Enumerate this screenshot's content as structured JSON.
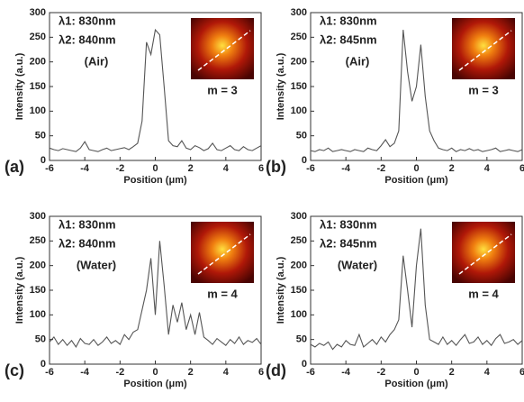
{
  "chart_data": [
    {
      "type": "line",
      "lambda1": "λ1: 830nm",
      "lambda2": "λ2: 840nm",
      "medium": "(Air)",
      "mode": "m = 3",
      "panel_label": "(a)",
      "x_label": "Position (μm)",
      "y_label": "Intensity (a.u.)",
      "xlim": [
        -6,
        6
      ],
      "xticks": [
        -6,
        -4,
        -2,
        0,
        2,
        4,
        6
      ],
      "ylim": [
        0,
        300
      ],
      "yticks": [
        0,
        50,
        100,
        150,
        200,
        250,
        300
      ],
      "x": [
        -6,
        -5.75,
        -5.5,
        -5.25,
        -5,
        -4.75,
        -4.5,
        -4.25,
        -4,
        -3.75,
        -3.5,
        -3.25,
        -3,
        -2.75,
        -2.5,
        -2.25,
        -2,
        -1.75,
        -1.5,
        -1.25,
        -1,
        -0.75,
        -0.5,
        -0.25,
        0,
        0.25,
        0.5,
        0.75,
        1,
        1.25,
        1.5,
        1.75,
        2,
        2.25,
        2.5,
        2.75,
        3,
        3.25,
        3.5,
        3.75,
        4,
        4.25,
        4.5,
        4.75,
        5,
        5.25,
        5.5,
        5.75,
        6
      ],
      "series": [
        {
          "color": "#555555",
          "values": [
            25,
            22,
            20,
            24,
            22,
            20,
            18,
            25,
            38,
            22,
            20,
            18,
            22,
            25,
            20,
            22,
            24,
            26,
            22,
            28,
            35,
            80,
            240,
            215,
            265,
            255,
            150,
            40,
            30,
            28,
            40,
            25,
            22,
            30,
            26,
            20,
            24,
            35,
            22,
            20,
            25,
            30,
            22,
            20,
            28,
            22,
            20,
            25,
            30
          ]
        }
      ]
    },
    {
      "type": "line",
      "lambda1": "λ1: 830nm",
      "lambda2": "λ2: 845nm",
      "medium": "(Air)",
      "mode": "m = 3",
      "panel_label": "(b)",
      "x_label": "Position (μm)",
      "y_label": "Intensity (a.u.)",
      "xlim": [
        -6,
        6
      ],
      "xticks": [
        -6,
        -4,
        -2,
        0,
        2,
        4,
        6
      ],
      "ylim": [
        0,
        300
      ],
      "yticks": [
        0,
        50,
        100,
        150,
        200,
        250,
        300
      ],
      "x": [
        -6,
        -5.75,
        -5.5,
        -5.25,
        -5,
        -4.75,
        -4.5,
        -4.25,
        -4,
        -3.75,
        -3.5,
        -3.25,
        -3,
        -2.75,
        -2.5,
        -2.25,
        -2,
        -1.75,
        -1.5,
        -1.25,
        -1,
        -0.75,
        -0.5,
        -0.25,
        0,
        0.25,
        0.5,
        0.75,
        1,
        1.25,
        1.5,
        1.75,
        2,
        2.25,
        2.5,
        2.75,
        3,
        3.25,
        3.5,
        3.75,
        4,
        4.25,
        4.5,
        4.75,
        5,
        5.25,
        5.5,
        5.75,
        6
      ],
      "series": [
        {
          "color": "#555555",
          "values": [
            20,
            18,
            22,
            20,
            25,
            18,
            20,
            22,
            20,
            18,
            22,
            20,
            18,
            25,
            22,
            20,
            30,
            42,
            28,
            35,
            60,
            265,
            180,
            120,
            150,
            235,
            130,
            60,
            40,
            25,
            22,
            20,
            25,
            18,
            22,
            20,
            24,
            20,
            22,
            18,
            20,
            22,
            25,
            18,
            20,
            22,
            20,
            18,
            22
          ]
        }
      ]
    },
    {
      "type": "line",
      "lambda1": "λ1: 830nm",
      "lambda2": "λ2: 840nm",
      "medium": "(Water)",
      "mode": "m = 4",
      "panel_label": "(c)",
      "x_label": "Position (μm)",
      "y_label": "Intensity (a.u.)",
      "xlim": [
        -6,
        6
      ],
      "xticks": [
        -6,
        -4,
        -2,
        0,
        2,
        4,
        6
      ],
      "ylim": [
        0,
        300
      ],
      "yticks": [
        0,
        50,
        100,
        150,
        200,
        250,
        300
      ],
      "x": [
        -6,
        -5.75,
        -5.5,
        -5.25,
        -5,
        -4.75,
        -4.5,
        -4.25,
        -4,
        -3.75,
        -3.5,
        -3.25,
        -3,
        -2.75,
        -2.5,
        -2.25,
        -2,
        -1.75,
        -1.5,
        -1.25,
        -1,
        -0.75,
        -0.5,
        -0.25,
        0,
        0.25,
        0.5,
        0.75,
        1,
        1.25,
        1.5,
        1.75,
        2,
        2.25,
        2.5,
        2.75,
        3,
        3.25,
        3.5,
        3.75,
        4,
        4.25,
        4.5,
        4.75,
        5,
        5.25,
        5.5,
        5.75,
        6
      ],
      "series": [
        {
          "color": "#555555",
          "values": [
            45,
            55,
            40,
            50,
            38,
            48,
            35,
            52,
            42,
            40,
            50,
            38,
            45,
            55,
            42,
            48,
            40,
            60,
            50,
            65,
            70,
            110,
            150,
            215,
            100,
            250,
            160,
            60,
            120,
            85,
            125,
            70,
            100,
            60,
            105,
            55,
            48,
            40,
            52,
            45,
            38,
            50,
            42,
            55,
            40,
            48,
            44,
            52,
            40
          ]
        }
      ]
    },
    {
      "type": "line",
      "lambda1": "λ1: 830nm",
      "lambda2": "λ2: 845nm",
      "medium": "(Water)",
      "mode": "m = 4",
      "panel_label": "(d)",
      "x_label": "Position (μm)",
      "y_label": "Intensity (a.u.)",
      "xlim": [
        -6,
        6
      ],
      "xticks": [
        -6,
        -4,
        -2,
        0,
        2,
        4,
        6
      ],
      "ylim": [
        0,
        300
      ],
      "yticks": [
        0,
        50,
        100,
        150,
        200,
        250,
        300
      ],
      "x": [
        -6,
        -5.75,
        -5.5,
        -5.25,
        -5,
        -4.75,
        -4.5,
        -4.25,
        -4,
        -3.75,
        -3.5,
        -3.25,
        -3,
        -2.75,
        -2.5,
        -2.25,
        -2,
        -1.75,
        -1.5,
        -1.25,
        -1,
        -0.75,
        -0.5,
        -0.25,
        0,
        0.25,
        0.5,
        0.75,
        1,
        1.25,
        1.5,
        1.75,
        2,
        2.25,
        2.5,
        2.75,
        3,
        3.25,
        3.5,
        3.75,
        4,
        4.25,
        4.5,
        4.75,
        5,
        5.25,
        5.5,
        5.75,
        6
      ],
      "series": [
        {
          "color": "#555555",
          "values": [
            40,
            35,
            42,
            38,
            45,
            30,
            40,
            35,
            48,
            40,
            38,
            60,
            35,
            42,
            50,
            40,
            55,
            45,
            60,
            70,
            90,
            220,
            150,
            75,
            200,
            275,
            120,
            50,
            45,
            40,
            55,
            40,
            48,
            38,
            50,
            60,
            42,
            45,
            55,
            40,
            48,
            38,
            52,
            60,
            42,
            45,
            50,
            40,
            48
          ]
        }
      ]
    }
  ]
}
